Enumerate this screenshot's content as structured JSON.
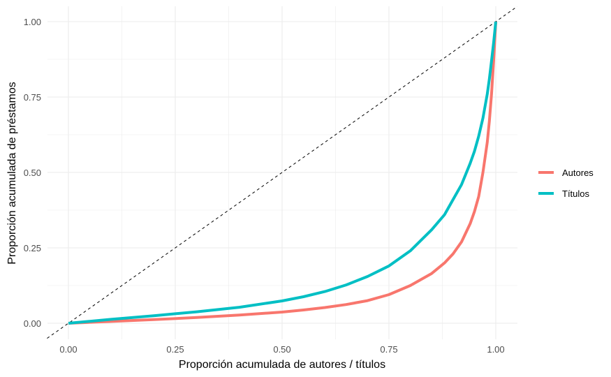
{
  "chart_data": {
    "type": "line",
    "title": "",
    "xlabel": "Proporción acumulada de autores / títulos",
    "ylabel": "Proporción acumulada de préstamos",
    "xlim": [
      -0.05,
      1.05
    ],
    "ylim": [
      -0.05,
      1.05
    ],
    "x_ticks": [
      "0.00",
      "0.25",
      "0.50",
      "0.75",
      "1.00"
    ],
    "y_ticks": [
      "0.00",
      "0.25",
      "0.50",
      "0.75",
      "1.00"
    ],
    "grid": true,
    "legend_position": "right",
    "reference_line": {
      "type": "dashed",
      "slope": 1,
      "intercept": 0,
      "color": "#000000"
    },
    "series": [
      {
        "name": "Autores",
        "color": "#F8766D",
        "x": [
          0,
          0.1,
          0.2,
          0.3,
          0.4,
          0.5,
          0.55,
          0.6,
          0.65,
          0.7,
          0.75,
          0.8,
          0.85,
          0.88,
          0.9,
          0.92,
          0.94,
          0.95,
          0.96,
          0.97,
          0.98,
          0.985,
          0.99,
          0.995,
          1.0
        ],
        "values": [
          0,
          0.006,
          0.012,
          0.019,
          0.027,
          0.037,
          0.044,
          0.052,
          0.062,
          0.075,
          0.095,
          0.125,
          0.165,
          0.2,
          0.23,
          0.27,
          0.33,
          0.37,
          0.42,
          0.5,
          0.6,
          0.67,
          0.76,
          0.87,
          1.0
        ]
      },
      {
        "name": "Títulos",
        "color": "#00BFC4",
        "x": [
          0,
          0.1,
          0.2,
          0.3,
          0.4,
          0.5,
          0.55,
          0.6,
          0.65,
          0.7,
          0.75,
          0.8,
          0.85,
          0.88,
          0.9,
          0.92,
          0.94,
          0.95,
          0.96,
          0.97,
          0.98,
          0.985,
          0.99,
          0.995,
          1.0
        ],
        "values": [
          0,
          0.013,
          0.025,
          0.038,
          0.053,
          0.074,
          0.088,
          0.105,
          0.127,
          0.155,
          0.19,
          0.24,
          0.31,
          0.36,
          0.41,
          0.46,
          0.53,
          0.57,
          0.62,
          0.68,
          0.76,
          0.81,
          0.87,
          0.93,
          1.0
        ]
      }
    ]
  },
  "legend": {
    "items": [
      {
        "label": "Autores",
        "color": "#F8766D"
      },
      {
        "label": "Títulos",
        "color": "#00BFC4"
      }
    ]
  }
}
